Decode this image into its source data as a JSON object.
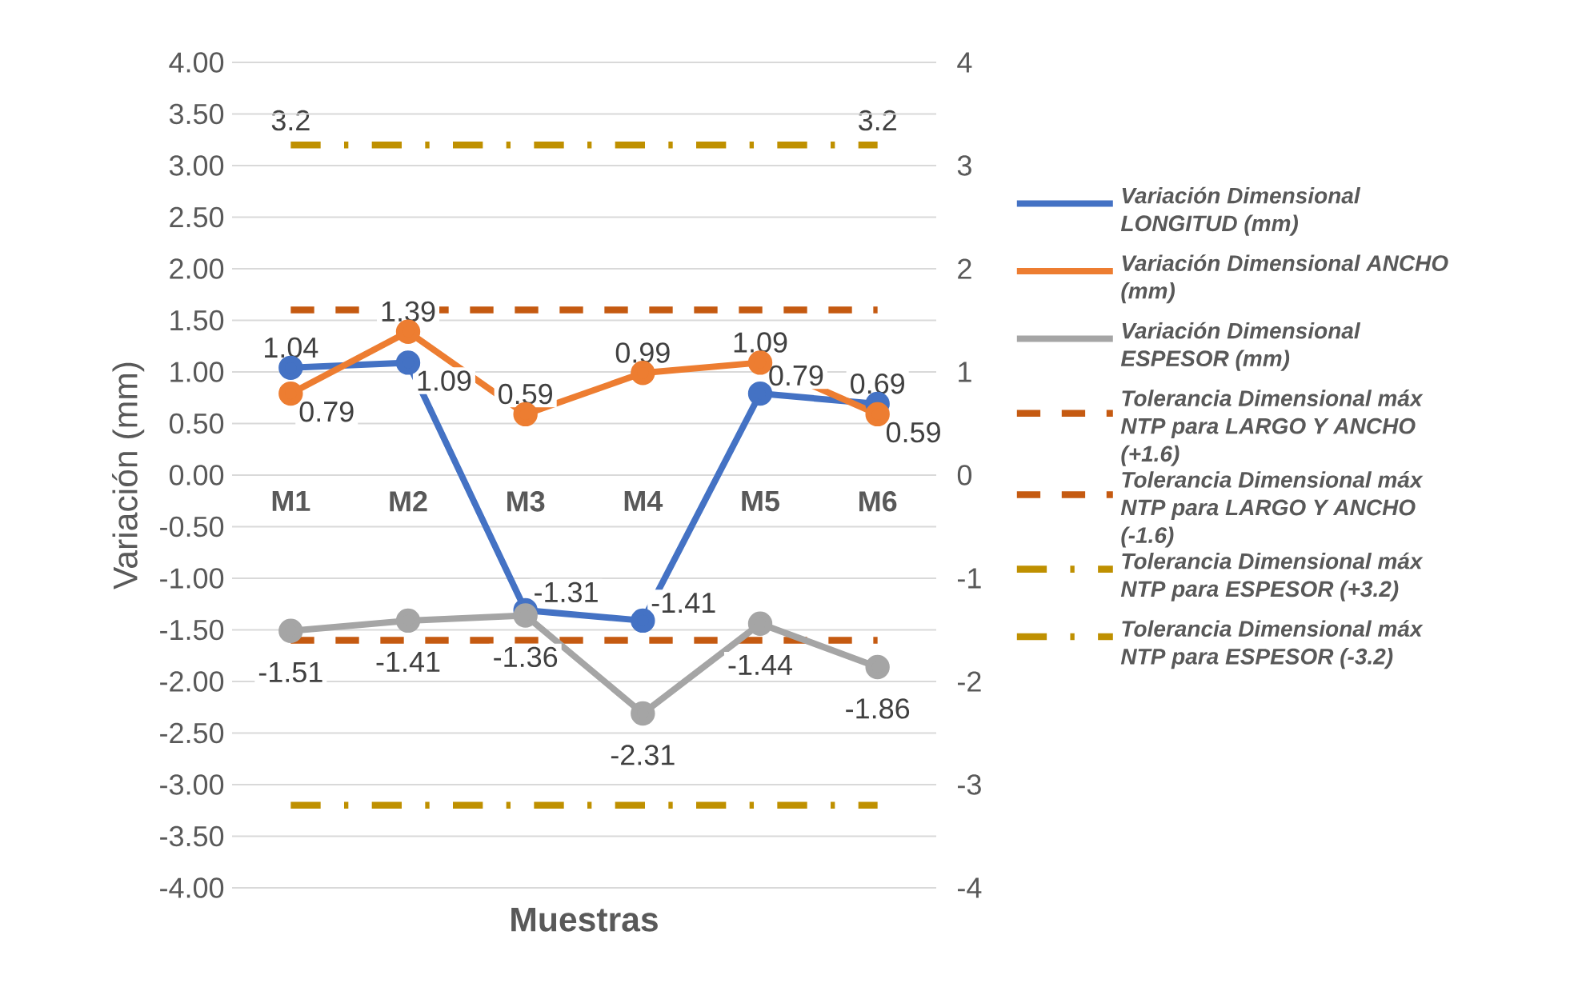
{
  "chart_data": {
    "type": "line",
    "xlabel": "Muestras",
    "ylabel": "Variación (mm)",
    "categories": [
      "M1",
      "M2",
      "M3",
      "M4",
      "M5",
      "M6"
    ],
    "series": [
      {
        "name": "Variación Dimensional LONGITUD (mm)",
        "color": "#4472c4",
        "values": [
          1.04,
          1.09,
          -1.31,
          -1.41,
          0.79,
          0.69
        ],
        "value_labels": [
          "1.04",
          "1.09",
          "-1.31",
          "-1.41",
          "0.79",
          "0.69"
        ],
        "marker": "circle",
        "line_style": "solid"
      },
      {
        "name": "Variación Dimensional ANCHO (mm)",
        "color": "#ed7d31",
        "values": [
          0.79,
          1.39,
          0.59,
          0.99,
          1.09,
          0.59
        ],
        "value_labels": [
          "0.79",
          "1.39",
          "0.59",
          "0.99",
          "1.09",
          "0.59"
        ],
        "marker": "circle",
        "line_style": "solid"
      },
      {
        "name": "Variación Dimensional ESPESOR (mm)",
        "color": "#a5a5a5",
        "values": [
          -1.51,
          -1.41,
          -1.36,
          -2.31,
          -1.44,
          -1.86
        ],
        "value_labels": [
          "-1.51",
          "-1.41",
          "-1.36",
          "-2.31",
          "-1.44",
          "-1.86"
        ],
        "marker": "circle",
        "line_style": "solid"
      },
      {
        "name": "Tolerancia Dimensional máx NTP para LARGO Y ANCHO (+1.6)",
        "color": "#c55a11",
        "values": [
          1.6,
          1.6,
          1.6,
          1.6,
          1.6,
          1.6
        ],
        "marker": "none",
        "line_style": "dashed",
        "axis": "y2"
      },
      {
        "name": "Tolerancia Dimensional máx NTP para LARGO Y ANCHO  (-1.6)",
        "color": "#c55a11",
        "values": [
          -1.6,
          -1.6,
          -1.6,
          -1.6,
          -1.6,
          -1.6
        ],
        "marker": "none",
        "line_style": "dashed",
        "axis": "y2"
      },
      {
        "name": "Tolerancia Dimensional máx NTP para ESPESOR  (+3.2)",
        "color": "#bf9000",
        "values": [
          3.2,
          3.2,
          3.2,
          3.2,
          3.2,
          3.2
        ],
        "value_labels": [
          "3.2",
          null,
          null,
          null,
          null,
          "3.2"
        ],
        "marker": "none",
        "line_style": "dotted",
        "axis": "y2"
      },
      {
        "name": "Tolerancia Dimensional máx NTP para ESPESOR  (-3.2)",
        "color": "#bf9000",
        "values": [
          -3.2,
          -3.2,
          -3.2,
          -3.2,
          -3.2,
          -3.2
        ],
        "marker": "none",
        "line_style": "dotted",
        "axis": "y2"
      }
    ],
    "ylim": [
      -4,
      4
    ],
    "yticks": [
      {
        "value": -4,
        "label": "-4.00"
      },
      {
        "value": -3.5,
        "label": "-3.50"
      },
      {
        "value": -3,
        "label": "-3.00"
      },
      {
        "value": -2.5,
        "label": "-2.50"
      },
      {
        "value": -2,
        "label": "-2.00"
      },
      {
        "value": -1.5,
        "label": "-1.50"
      },
      {
        "value": -1,
        "label": "-1.00"
      },
      {
        "value": -0.5,
        "label": "-0.50"
      },
      {
        "value": 0,
        "label": "0.00"
      },
      {
        "value": 0.5,
        "label": "0.50"
      },
      {
        "value": 1,
        "label": "1.00"
      },
      {
        "value": 1.5,
        "label": "1.50"
      },
      {
        "value": 2,
        "label": "2.00"
      },
      {
        "value": 2.5,
        "label": "2.50"
      },
      {
        "value": 3,
        "label": "3.00"
      },
      {
        "value": 3.5,
        "label": "3.50"
      },
      {
        "value": 4,
        "label": "4.00"
      }
    ],
    "y2lim": [
      -4,
      4
    ],
    "y2ticks": [
      -4,
      -3,
      -2,
      -1,
      0,
      1,
      2,
      3,
      4
    ],
    "grid": "y",
    "legend": "right"
  }
}
